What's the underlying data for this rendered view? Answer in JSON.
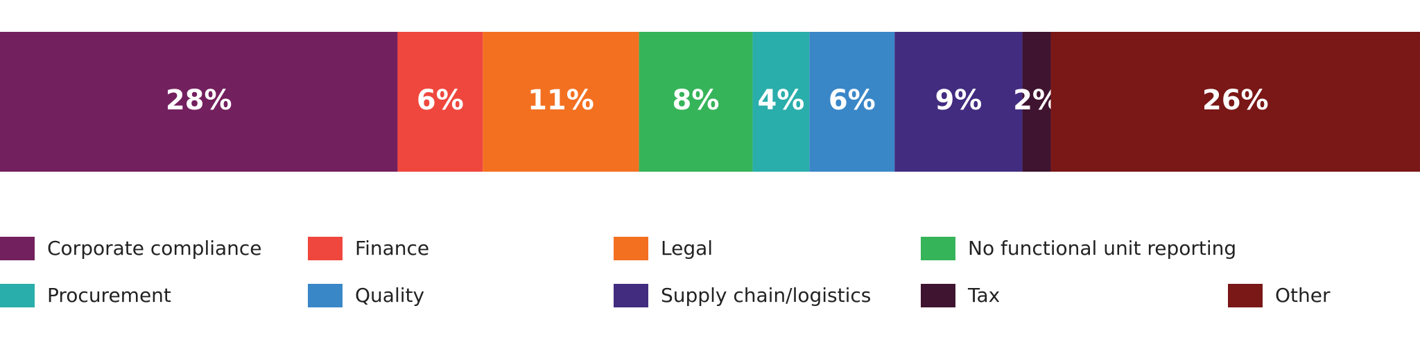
{
  "chart_data": {
    "type": "stacked-bar",
    "xlim": [
      0,
      100
    ],
    "series": [
      {
        "name": "Corporate compliance",
        "color": "#73205e",
        "values": [
          28
        ],
        "value_labels": [
          "28%"
        ]
      },
      {
        "name": "Finance",
        "color": "#ef473e",
        "values": [
          6
        ],
        "value_labels": [
          "6%"
        ]
      },
      {
        "name": "Legal",
        "color": "#f37021",
        "values": [
          11
        ],
        "value_labels": [
          "11%"
        ]
      },
      {
        "name": "No functional unit reporting",
        "color": "#36b459",
        "values": [
          8
        ],
        "value_labels": [
          "8%"
        ]
      },
      {
        "name": "Procurement",
        "color": "#2aaeab",
        "values": [
          4
        ],
        "value_labels": [
          "4%"
        ]
      },
      {
        "name": "Quality",
        "color": "#3a87c8",
        "values": [
          6
        ],
        "value_labels": [
          "6%"
        ]
      },
      {
        "name": "Supply chain/logistics",
        "color": "#422c80",
        "values": [
          9
        ],
        "value_labels": [
          "9%"
        ]
      },
      {
        "name": "Tax",
        "color": "#3f1430",
        "values": [
          2
        ],
        "value_labels": [
          "2%"
        ]
      },
      {
        "name": "Other",
        "color": "#7a1717",
        "values": [
          26
        ],
        "value_labels": [
          "26%"
        ]
      }
    ]
  }
}
